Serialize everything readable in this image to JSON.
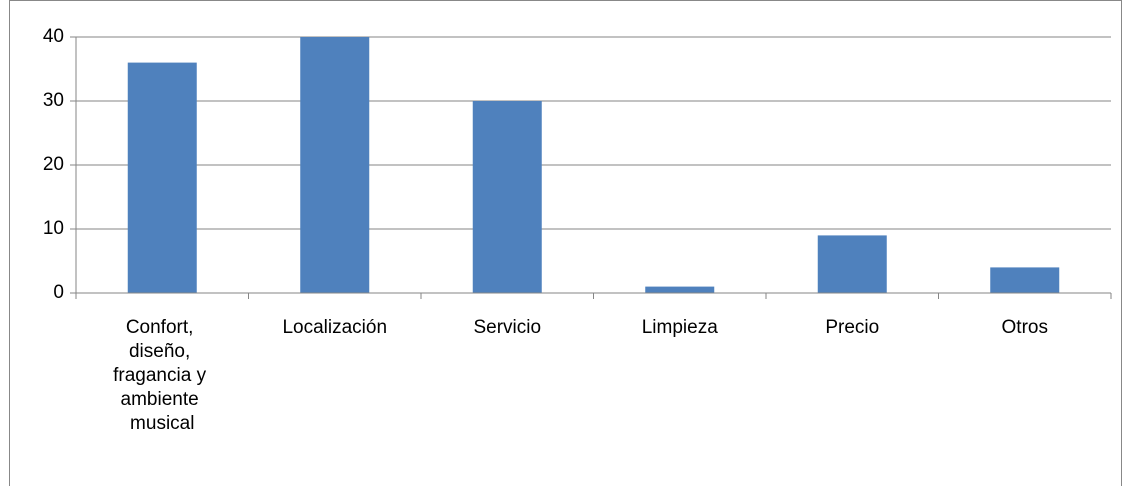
{
  "chart_data": {
    "type": "bar",
    "categories": [
      "Confort, diseño, fragancia y ambiente musical",
      "Localización",
      "Servicio",
      "Limpieza",
      "Precio",
      "Otros"
    ],
    "values": [
      36,
      40,
      30,
      1,
      9,
      4
    ],
    "color": "#4f81bd",
    "ylim": [
      0,
      40
    ],
    "yticks": [
      0,
      10,
      20,
      30,
      40
    ],
    "grid": true
  }
}
